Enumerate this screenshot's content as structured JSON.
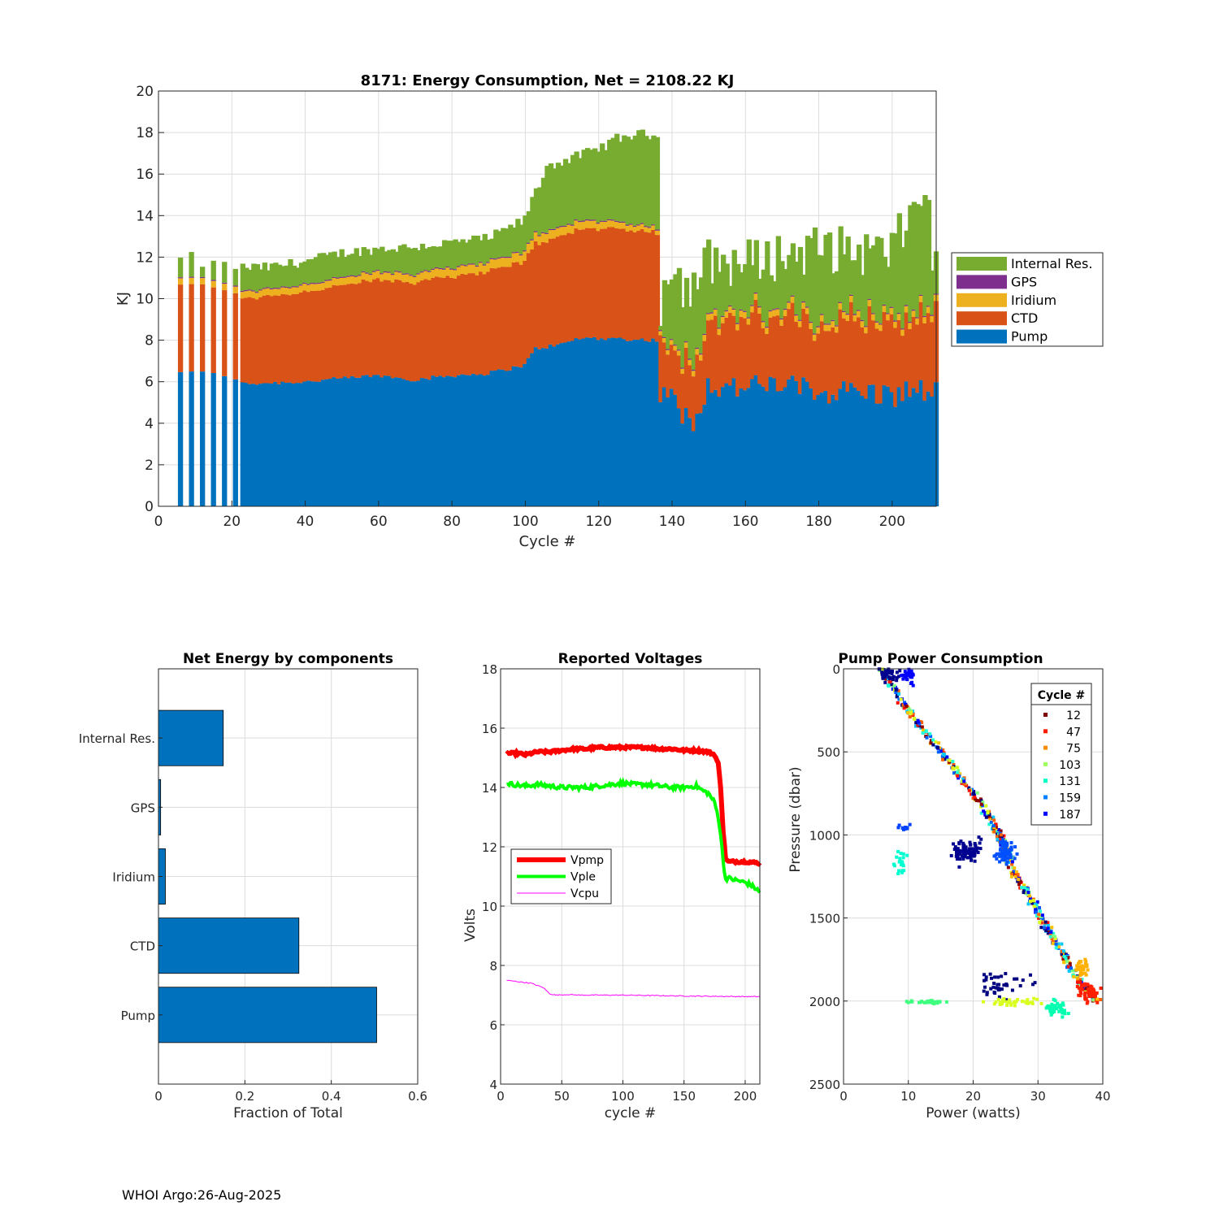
{
  "footer": "WHOI Argo:26-Aug-2025",
  "colors": {
    "pump": "#0072bd",
    "ctd": "#d95319",
    "iridium": "#edb120",
    "gps": "#7e2f8e",
    "internal": "#77ac30",
    "vpmp": "#ff0000",
    "vple": "#00ff00",
    "vcpu": "#ff00ff"
  },
  "chart_data": [
    {
      "id": "energy",
      "type": "bar",
      "stacked": true,
      "title": "8171: Energy Consumption,  Net = 2108.22 KJ",
      "xlabel": "Cycle #",
      "ylabel": "KJ",
      "xlim": [
        0,
        212
      ],
      "ylim": [
        0,
        20
      ],
      "xticks": [
        0,
        20,
        40,
        60,
        80,
        100,
        120,
        140,
        160,
        180,
        200
      ],
      "yticks": [
        0,
        2,
        4,
        6,
        8,
        10,
        12,
        14,
        16,
        18,
        20
      ],
      "grid": true,
      "legend_position": "right",
      "series_names": [
        "Pump",
        "CTD",
        "Iridium",
        "GPS",
        "Internal Res."
      ],
      "legend_order": [
        "Internal Res.",
        "GPS",
        "Iridium",
        "CTD",
        "Pump"
      ],
      "approx_total_anchors": [
        [
          6,
          11.9
        ],
        [
          9,
          12.0
        ],
        [
          12,
          11.7
        ],
        [
          20,
          11.6
        ],
        [
          23,
          11.5
        ],
        [
          30,
          11.5
        ],
        [
          40,
          11.8
        ],
        [
          50,
          12.2
        ],
        [
          60,
          12.4
        ],
        [
          70,
          12.5
        ],
        [
          80,
          12.7
        ],
        [
          90,
          12.9
        ],
        [
          100,
          13.8
        ],
        [
          102,
          14.8
        ],
        [
          104,
          15.5
        ],
        [
          106,
          16.4
        ],
        [
          110,
          16.6
        ],
        [
          115,
          16.9
        ],
        [
          120,
          17.2
        ],
        [
          125,
          17.7
        ],
        [
          130,
          17.9
        ],
        [
          136,
          17.9
        ],
        [
          137,
          7.8
        ],
        [
          138,
          11.9
        ],
        [
          145,
          10.3
        ],
        [
          150,
          11.8
        ],
        [
          160,
          11.7
        ],
        [
          170,
          12.1
        ],
        [
          180,
          12.4
        ],
        [
          190,
          12.3
        ],
        [
          200,
          12.2
        ],
        [
          205,
          14.0
        ],
        [
          209,
          15.4
        ],
        [
          212,
          11.1
        ]
      ],
      "approx_pump_anchors": [
        [
          6,
          6.5
        ],
        [
          20,
          6.3
        ],
        [
          23,
          5.9
        ],
        [
          40,
          6.0
        ],
        [
          60,
          6.3
        ],
        [
          70,
          6.1
        ],
        [
          80,
          6.3
        ],
        [
          90,
          6.4
        ],
        [
          100,
          6.8
        ],
        [
          103,
          7.6
        ],
        [
          110,
          7.8
        ],
        [
          115,
          8.1
        ],
        [
          120,
          8.1
        ],
        [
          136,
          8.0
        ],
        [
          137,
          5.0
        ],
        [
          138,
          6.0
        ],
        [
          142,
          4.5
        ],
        [
          146,
          4.2
        ],
        [
          150,
          5.8
        ],
        [
          160,
          5.7
        ],
        [
          170,
          5.9
        ],
        [
          180,
          5.5
        ],
        [
          190,
          5.6
        ],
        [
          200,
          5.3
        ],
        [
          205,
          5.6
        ],
        [
          212,
          5.5
        ]
      ],
      "approx_ctd_anchors": [
        [
          6,
          4.2
        ],
        [
          23,
          4.1
        ],
        [
          60,
          4.6
        ],
        [
          100,
          5.0
        ],
        [
          110,
          5.2
        ],
        [
          120,
          5.3
        ],
        [
          136,
          5.2
        ],
        [
          137,
          3.2
        ],
        [
          138,
          2.4
        ],
        [
          150,
          3.1
        ],
        [
          170,
          3.2
        ],
        [
          190,
          3.5
        ],
        [
          200,
          3.4
        ],
        [
          212,
          3.6
        ]
      ],
      "approx_iridium_anchors": [
        [
          6,
          0.3
        ],
        [
          60,
          0.35
        ],
        [
          100,
          0.45
        ],
        [
          120,
          0.35
        ],
        [
          137,
          0.2
        ],
        [
          150,
          0.3
        ],
        [
          212,
          0.3
        ]
      ],
      "approx_gps_anchors": [
        [
          6,
          0.05
        ],
        [
          212,
          0.05
        ]
      ]
    },
    {
      "id": "net",
      "type": "bar",
      "orientation": "horizontal",
      "title": "Net Energy by components",
      "xlabel": "Fraction of Total",
      "categories": [
        "Internal Res.",
        "GPS",
        "Iridium",
        "CTD",
        "Pump"
      ],
      "values": [
        0.15,
        0.005,
        0.016,
        0.325,
        0.505
      ],
      "xlim": [
        0,
        0.6
      ],
      "xticks": [
        0,
        0.2,
        0.4,
        0.6
      ],
      "grid": true
    },
    {
      "id": "volts",
      "type": "line",
      "title": "Reported Voltages",
      "xlabel": "cycle #",
      "ylabel": "Volts",
      "xlim": [
        0,
        212
      ],
      "ylim": [
        4,
        18
      ],
      "xticks": [
        0,
        50,
        100,
        150,
        200
      ],
      "yticks": [
        4,
        6,
        8,
        10,
        12,
        14,
        16,
        18
      ],
      "grid": true,
      "legend_position": "left-middle",
      "series": [
        {
          "name": "Vpmp",
          "x": [
            5,
            15,
            20,
            25,
            30,
            40,
            50,
            60,
            70,
            80,
            100,
            120,
            130,
            140,
            150,
            160,
            170,
            175,
            178,
            180,
            182,
            184,
            186,
            200,
            212
          ],
          "y": [
            15.15,
            15.15,
            15.1,
            15.15,
            15.2,
            15.2,
            15.25,
            15.3,
            15.3,
            15.35,
            15.35,
            15.35,
            15.3,
            15.3,
            15.25,
            15.25,
            15.2,
            15.1,
            14.8,
            14.0,
            12.5,
            11.6,
            11.5,
            11.5,
            11.45
          ]
        },
        {
          "name": "Vple",
          "x": [
            5,
            10,
            20,
            30,
            40,
            50,
            60,
            70,
            80,
            90,
            100,
            110,
            120,
            130,
            140,
            150,
            160,
            165,
            170,
            175,
            178,
            180,
            182,
            184,
            186,
            190,
            200,
            205,
            210,
            212
          ],
          "y": [
            14.15,
            14.1,
            14.05,
            14.1,
            14.05,
            14.0,
            14.0,
            14.0,
            14.05,
            14.1,
            14.15,
            14.1,
            14.1,
            14.05,
            14.0,
            14.0,
            14.05,
            13.9,
            13.8,
            13.5,
            13.0,
            12.4,
            11.5,
            10.9,
            10.95,
            10.9,
            10.8,
            10.7,
            10.55,
            10.45
          ]
        },
        {
          "name": "Vcpu",
          "x": [
            5,
            15,
            25,
            35,
            40,
            45,
            55,
            65,
            80,
            100,
            150,
            200,
            212
          ],
          "y": [
            7.5,
            7.45,
            7.4,
            7.25,
            7.05,
            7.0,
            7.02,
            7.0,
            7.0,
            7.0,
            6.97,
            6.95,
            6.95
          ]
        }
      ]
    },
    {
      "id": "pump",
      "type": "scatter",
      "title": "Pump Power Consumption",
      "xlabel": "Power (watts)",
      "ylabel": "Pressure (dbar)",
      "xlim": [
        0,
        40
      ],
      "ylim": [
        2500,
        0
      ],
      "xticks": [
        0,
        10,
        20,
        30,
        40
      ],
      "yticks": [
        0,
        500,
        1000,
        1500,
        2000,
        2500
      ],
      "grid": true,
      "legend_title": "Cycle #",
      "legend_position": "top-right",
      "legend_cycles": [
        12,
        47,
        75,
        103,
        131,
        159,
        187
      ],
      "legend_colors": [
        "#7f0000",
        "#ff1a00",
        "#ff8c00",
        "#9cff5c",
        "#00ffc8",
        "#0080ff",
        "#0000ff"
      ],
      "main_trend": [
        [
          6,
          0
        ],
        [
          9,
          200
        ],
        [
          13,
          400
        ],
        [
          17,
          600
        ],
        [
          21,
          800
        ],
        [
          24,
          1000
        ],
        [
          26,
          1200
        ],
        [
          29,
          1400
        ],
        [
          32,
          1600
        ],
        [
          35,
          1800
        ],
        [
          37,
          1900
        ],
        [
          39,
          2000
        ]
      ],
      "clusters": [
        {
          "cx": 7,
          "cy": 30,
          "sx": 1.2,
          "sy": 40,
          "n": 40,
          "color": "#00008f"
        },
        {
          "cx": 10,
          "cy": 40,
          "sx": 1.0,
          "sy": 40,
          "n": 30,
          "color": "#0000ff"
        },
        {
          "cx": 19,
          "cy": 1100,
          "sx": 1.8,
          "sy": 60,
          "n": 90,
          "color": "#000090"
        },
        {
          "cx": 25,
          "cy": 1100,
          "sx": 1.3,
          "sy": 60,
          "n": 70,
          "color": "#0050ff"
        },
        {
          "cx": 9,
          "cy": 1150,
          "sx": 0.8,
          "sy": 60,
          "n": 20,
          "color": "#00ffd0"
        },
        {
          "cx": 9,
          "cy": 960,
          "sx": 1.2,
          "sy": 15,
          "n": 10,
          "color": "#0040ff"
        },
        {
          "cx": 25,
          "cy": 1900,
          "sx": 4.0,
          "sy": 80,
          "n": 40,
          "color": "#000080"
        },
        {
          "cx": 13,
          "cy": 2005,
          "sx": 2.5,
          "sy": 8,
          "n": 40,
          "color": "#40ff80"
        },
        {
          "cx": 26,
          "cy": 2010,
          "sx": 3.5,
          "sy": 20,
          "n": 40,
          "color": "#d8ff20"
        },
        {
          "cx": 33,
          "cy": 2040,
          "sx": 2.0,
          "sy": 40,
          "n": 40,
          "color": "#00ffb0"
        },
        {
          "cx": 38,
          "cy": 1950,
          "sx": 1.3,
          "sy": 50,
          "n": 50,
          "color": "#ff2000"
        },
        {
          "cx": 37,
          "cy": 1800,
          "sx": 1.0,
          "sy": 40,
          "n": 30,
          "color": "#ffb000"
        }
      ]
    }
  ]
}
